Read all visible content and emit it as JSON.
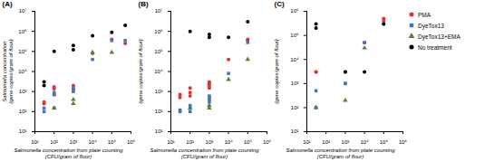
{
  "chart_data": [
    {
      "type": "scatter",
      "title": "(A)",
      "xlabel": "Salmonella concentration from plate counting\n(CFU/gram of flour)",
      "ylabel": "Salmonella concentration\n(gene copies/gram of flour)",
      "log": true,
      "grid": false,
      "xlim": [
        10,
        1000000
      ],
      "ylim": [
        10,
        10000000
      ],
      "xticks": [
        {
          "value": 10,
          "label": "10¹"
        },
        {
          "value": 100,
          "label": "10²"
        },
        {
          "value": 1000,
          "label": "10³"
        },
        {
          "value": 10000,
          "label": "10⁴"
        },
        {
          "value": 100000,
          "label": "10⁵"
        },
        {
          "value": 1000000,
          "label": "10⁶"
        }
      ],
      "yticks": [
        {
          "value": 10,
          "label": "10¹"
        },
        {
          "value": 100,
          "label": "10²"
        },
        {
          "value": 1000,
          "label": "10³"
        },
        {
          "value": 10000,
          "label": "10⁴"
        },
        {
          "value": 100000,
          "label": "10⁵"
        },
        {
          "value": 1000000,
          "label": "10⁶"
        },
        {
          "value": 10000000,
          "label": "10⁷"
        }
      ],
      "series": [
        {
          "name": "PMA",
          "color": "#e8302a",
          "marker": "circle",
          "values": [
            [
              30,
              250
            ],
            [
              30,
              300
            ],
            [
              100,
              1400
            ],
            [
              100,
              1700
            ],
            [
              100,
              700
            ],
            [
              1000,
              2000
            ],
            [
              1000,
              1300
            ],
            [
              10000,
              80000
            ],
            [
              100000,
              400000
            ],
            [
              500000,
              250000
            ]
          ]
        },
        {
          "name": "DyeTox13",
          "color": "#4472c4",
          "marker": "square",
          "values": [
            [
              30,
              100
            ],
            [
              30,
              150
            ],
            [
              100,
              150
            ],
            [
              100,
              900
            ],
            [
              100,
              700
            ],
            [
              1000,
              1500
            ],
            [
              1000,
              1000
            ],
            [
              10000,
              40000
            ],
            [
              100000,
              350000
            ],
            [
              500000,
              350000
            ]
          ]
        },
        {
          "name": "DyeTox13+EMA",
          "color": "#548235",
          "marker": "triangle",
          "values": [
            [
              100,
              150
            ],
            [
              1000,
              250
            ],
            [
              1000,
              400
            ],
            [
              10000,
              90000
            ],
            [
              100000,
              90000
            ]
          ]
        },
        {
          "name": "No treatment",
          "color": "#000000",
          "marker": "circle",
          "values": [
            [
              30,
              2000
            ],
            [
              30,
              3000
            ],
            [
              100,
              100000
            ],
            [
              1000,
              200000
            ],
            [
              1000,
              120000
            ],
            [
              10000,
              600000
            ],
            [
              100000,
              900000
            ],
            [
              500000,
              2000000
            ]
          ]
        }
      ]
    },
    {
      "type": "scatter",
      "title": "(B)",
      "xlabel": "Salmonella concentration from plate counting\n(CFU/gram of flour)",
      "ylabel": "(gene copies/gram of flour)",
      "log": true,
      "grid": false,
      "xlim": [
        10,
        1000000
      ],
      "ylim": [
        10,
        10000000
      ],
      "xticks": [
        {
          "value": 10,
          "label": "10¹"
        },
        {
          "value": 100,
          "label": "10²"
        },
        {
          "value": 1000,
          "label": "10³"
        },
        {
          "value": 10000,
          "label": "10⁴"
        },
        {
          "value": 100000,
          "label": "10⁵"
        },
        {
          "value": 1000000,
          "label": "10⁶"
        }
      ],
      "yticks": [
        {
          "value": 10,
          "label": "10¹"
        },
        {
          "value": 100,
          "label": "10²"
        },
        {
          "value": 1000,
          "label": "10³"
        },
        {
          "value": 10000,
          "label": "10⁴"
        },
        {
          "value": 100000,
          "label": "10⁵"
        },
        {
          "value": 1000000,
          "label": "10⁶"
        },
        {
          "value": 10000000,
          "label": "10⁷"
        }
      ],
      "series": [
        {
          "name": "PMA",
          "color": "#e8302a",
          "marker": "circle",
          "values": [
            [
              30,
              500
            ],
            [
              30,
              700
            ],
            [
              100,
              600
            ],
            [
              100,
              900
            ],
            [
              100,
              1500
            ],
            [
              1000,
              1500
            ],
            [
              1000,
              2000
            ],
            [
              1000,
              2500
            ],
            [
              1000,
              3000
            ],
            [
              10000,
              40000
            ],
            [
              100000,
              350000
            ],
            [
              100000,
              400000
            ]
          ]
        },
        {
          "name": "DyeTox13",
          "color": "#4472c4",
          "marker": "square",
          "values": [
            [
              30,
              100
            ],
            [
              30,
              120
            ],
            [
              100,
              100
            ],
            [
              100,
              150
            ],
            [
              100,
              200
            ],
            [
              1000,
              300
            ],
            [
              1000,
              400
            ],
            [
              1000,
              500
            ],
            [
              1000,
              600
            ],
            [
              10000,
              8000
            ],
            [
              100000,
              280000
            ]
          ]
        },
        {
          "name": "DyeTox13+EMA",
          "color": "#548235",
          "marker": "triangle",
          "values": [
            [
              100,
              150
            ],
            [
              1000,
              150
            ],
            [
              1000,
              200
            ],
            [
              10000,
              4000
            ],
            [
              100000,
              40000
            ]
          ]
        },
        {
          "name": "No treatment",
          "color": "#000000",
          "marker": "circle",
          "values": [
            [
              100,
              1000000
            ],
            [
              1000,
              500000
            ],
            [
              1000,
              700000
            ],
            [
              10000,
              500000
            ],
            [
              100000,
              3000000
            ]
          ]
        }
      ]
    },
    {
      "type": "scatter",
      "title": "(C)",
      "xlabel": "Salmonella concentration from plate counting\n(CFU/gram of flour)",
      "ylabel": "(gene copies/gram of flour)",
      "log": true,
      "grid": false,
      "legend": "right",
      "xlim": [
        10,
        1000000
      ],
      "ylim": [
        10,
        1000000
      ],
      "xticks": [
        {
          "value": 10,
          "label": "10¹"
        },
        {
          "value": 100,
          "label": "10²"
        },
        {
          "value": 1000,
          "label": "10³"
        },
        {
          "value": 10000,
          "label": "10⁴"
        },
        {
          "value": 100000,
          "label": "10⁵"
        },
        {
          "value": 1000000,
          "label": "10⁶"
        }
      ],
      "yticks": [
        {
          "value": 10,
          "label": "10¹"
        },
        {
          "value": 100,
          "label": "10²"
        },
        {
          "value": 1000,
          "label": "10³"
        },
        {
          "value": 10000,
          "label": "10⁴"
        },
        {
          "value": 100000,
          "label": "10⁵"
        },
        {
          "value": 1000000,
          "label": "10⁶"
        }
      ],
      "series": [
        {
          "name": "PMA",
          "color": "#e8302a",
          "marker": "circle",
          "values": [
            [
              30,
              3000
            ],
            [
              30,
              3000
            ],
            [
              1000,
              3000
            ],
            [
              10000,
              50000
            ],
            [
              100000,
              500000
            ],
            [
              100000,
              400000
            ]
          ]
        },
        {
          "name": "DyeTox13",
          "color": "#4472c4",
          "marker": "square",
          "values": [
            [
              30,
              500
            ],
            [
              30,
              100
            ],
            [
              1000,
              1000
            ],
            [
              1000,
              1000
            ],
            [
              10000,
              50000
            ],
            [
              100000,
              300000
            ]
          ]
        },
        {
          "name": "DyeTox13+EMA",
          "color": "#548235",
          "marker": "triangle",
          "values": [
            [
              30,
              100
            ],
            [
              1000,
              200
            ],
            [
              10000,
              30000
            ]
          ]
        },
        {
          "name": "No treatment",
          "color": "#000000",
          "marker": "circle",
          "values": [
            [
              30,
              200000
            ],
            [
              30,
              300000
            ],
            [
              1000,
              3000
            ],
            [
              10000,
              3000
            ],
            [
              100000,
              300000
            ]
          ]
        }
      ]
    }
  ]
}
